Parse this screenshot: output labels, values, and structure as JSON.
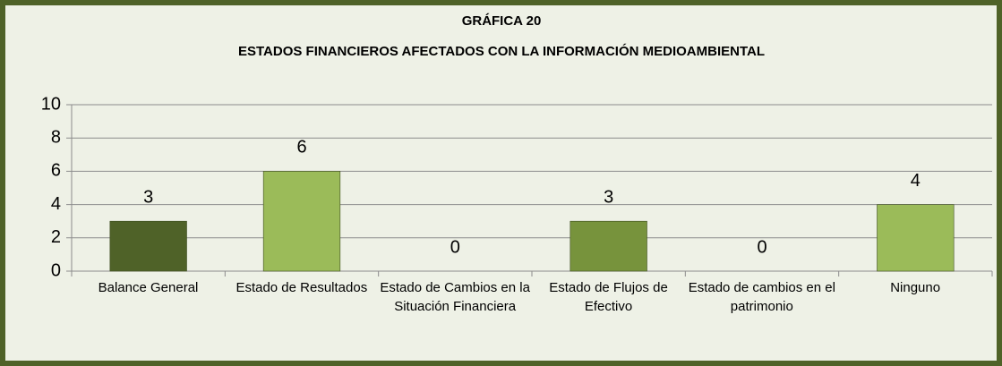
{
  "chart_data": {
    "type": "bar",
    "title": "GRÁFICA 20",
    "subtitle": "ESTADOS FINANCIEROS AFECTADOS CON LA INFORMACIÓN MEDIOAMBIENTAL",
    "categories": [
      "Balance General",
      "Estado de Resultados",
      "Estado de Cambios en la Situación Financiera",
      "Estado de Flujos de Efectivo",
      "Estado de cambios en el patrimonio",
      "Ninguno"
    ],
    "values": [
      3,
      6,
      0,
      3,
      0,
      4
    ],
    "colors": [
      "#4f6228",
      "#9bbb59",
      "#9bbb59",
      "#77933c",
      "#9bbb59",
      "#9bbb59"
    ],
    "ylim": [
      0,
      10
    ],
    "yticks": [
      0,
      2,
      4,
      6,
      8,
      10
    ],
    "grid": true
  }
}
